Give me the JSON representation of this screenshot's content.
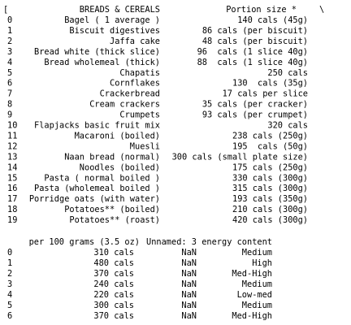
{
  "table1": {
    "open_bracket": "[",
    "columns": [
      "BREADS & CEREALS",
      "Portion size *"
    ],
    "continuation": "\\",
    "rows": [
      [
        0,
        "Bagel ( 1 average )",
        "140 cals (45g)"
      ],
      [
        1,
        "Biscuit digestives",
        "86 cals (per biscuit)"
      ],
      [
        2,
        "Jaffa cake",
        "48 cals (per biscuit)"
      ],
      [
        3,
        "Bread white (thick slice)",
        "96  cals (1 slice 40g)"
      ],
      [
        4,
        "Bread wholemeal (thick)",
        "88  cals (1 slice 40g)"
      ],
      [
        5,
        "Chapatis",
        "250 cals"
      ],
      [
        6,
        "Cornflakes",
        "130  cals (35g)"
      ],
      [
        7,
        "Crackerbread",
        "17 cals per slice"
      ],
      [
        8,
        "Cream crackers",
        "35 cals (per cracker)"
      ],
      [
        9,
        "Crumpets",
        "93 cals (per crumpet)"
      ],
      [
        10,
        "Flapjacks basic fruit mix",
        "320 cals"
      ],
      [
        11,
        "Macaroni (boiled)",
        "238 cals (250g)"
      ],
      [
        12,
        "Muesli",
        "195  cals (50g)"
      ],
      [
        13,
        "Naan bread (normal)",
        "300 cals (small plate size)"
      ],
      [
        14,
        "Noodles (boiled)",
        "175 cals (250g)"
      ],
      [
        15,
        "Pasta ( normal boiled )",
        "330 cals (300g)"
      ],
      [
        16,
        "Pasta (wholemeal boiled )",
        "315 cals (300g)"
      ],
      [
        17,
        "Porridge oats (with water)",
        "193 cals (350g)"
      ],
      [
        18,
        "Potatoes** (boiled)",
        "210 cals (300g)"
      ],
      [
        19,
        "Potatoes** (roast)",
        "420 cals (300g)"
      ]
    ]
  },
  "table2": {
    "columns": [
      "per 100 grams (3.5 oz)",
      "Unnamed: 3",
      "energy content"
    ],
    "rows": [
      [
        0,
        "310 cals",
        "NaN",
        "Medium"
      ],
      [
        1,
        "480 cals",
        "NaN",
        "High"
      ],
      [
        2,
        "370 cals",
        "NaN",
        "Med-High"
      ],
      [
        3,
        "240 cals",
        "NaN",
        "Medium"
      ],
      [
        4,
        "220 cals",
        "NaN",
        "Low-med"
      ],
      [
        5,
        "300 cals",
        "NaN",
        "Medium"
      ],
      [
        6,
        "370 cals",
        "NaN",
        "Med-High"
      ]
    ]
  }
}
